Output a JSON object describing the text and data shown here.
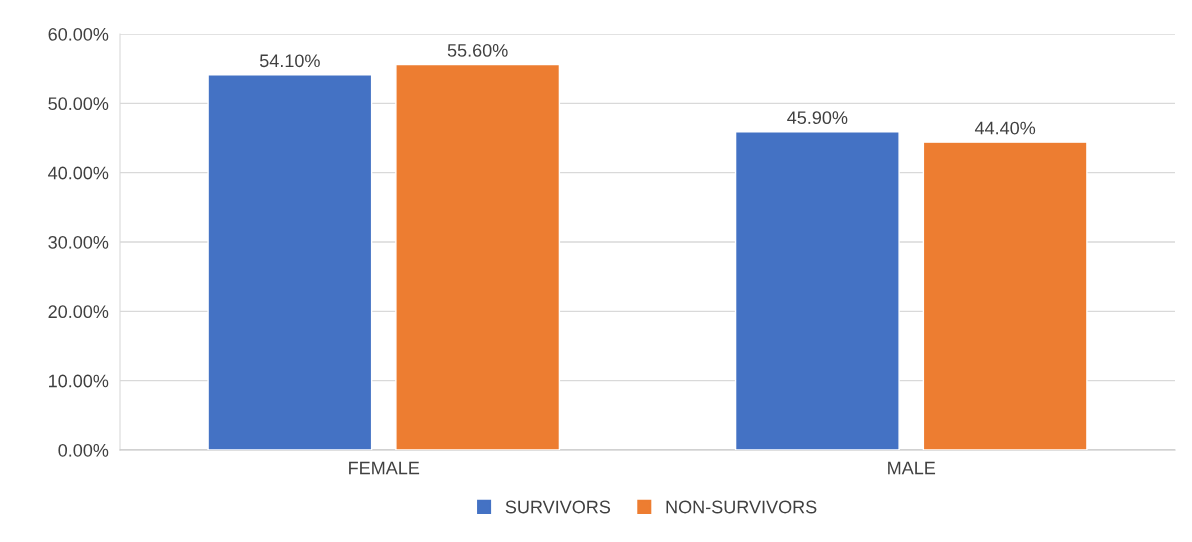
{
  "chart_data": {
    "type": "bar",
    "categories": [
      "FEMALE",
      "MALE"
    ],
    "series": [
      {
        "name": "SURVIVORS",
        "color": "#4472c4",
        "values": [
          54.1,
          45.9
        ],
        "value_labels": [
          "54.10%",
          "45.90%"
        ]
      },
      {
        "name": "NON-SURVIVORS",
        "color": "#ed7d31",
        "values": [
          55.6,
          44.4
        ],
        "value_labels": [
          "55.60%",
          "44.40%"
        ]
      }
    ],
    "ylim": [
      0,
      60
    ],
    "yticks": [
      {
        "value": 0,
        "label": "0.00%"
      },
      {
        "value": 10,
        "label": "10.00%"
      },
      {
        "value": 20,
        "label": "20.00%"
      },
      {
        "value": 30,
        "label": "30.00%"
      },
      {
        "value": 40,
        "label": "40.00%"
      },
      {
        "value": 50,
        "label": "50.00%"
      },
      {
        "value": 60,
        "label": "60.00%"
      }
    ],
    "grid": "y",
    "legend": "bottom"
  }
}
